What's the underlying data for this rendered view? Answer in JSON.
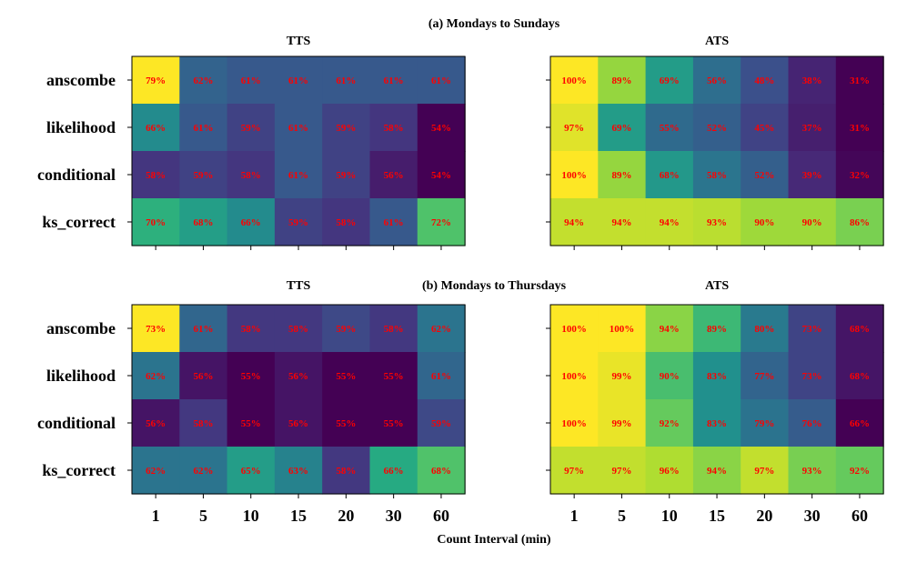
{
  "figure": {
    "xlabel": "Count Interval (min)",
    "value_suffix": "%"
  },
  "chart_data": [
    {
      "type": "heatmap",
      "panel_title": "(a) Mondays to Sundays",
      "title": "TTS",
      "rows": [
        "anscombe",
        "likelihood",
        "conditional",
        "ks_correct"
      ],
      "columns": [
        "1",
        "5",
        "10",
        "15",
        "20",
        "30",
        "60"
      ],
      "values": [
        [
          79,
          62,
          61,
          61,
          61,
          61,
          61
        ],
        [
          66,
          61,
          59,
          61,
          59,
          58,
          54
        ],
        [
          58,
          59,
          58,
          61,
          59,
          56,
          54
        ],
        [
          70,
          68,
          66,
          59,
          58,
          61,
          72
        ]
      ],
      "colormap": "viridis",
      "label_color": "#ff0000"
    },
    {
      "type": "heatmap",
      "panel_title": "(a) Mondays to Sundays",
      "title": "ATS",
      "rows": [
        "anscombe",
        "likelihood",
        "conditional",
        "ks_correct"
      ],
      "columns": [
        "1",
        "5",
        "10",
        "15",
        "20",
        "30",
        "60"
      ],
      "values": [
        [
          100,
          89,
          69,
          56,
          48,
          38,
          31
        ],
        [
          97,
          69,
          55,
          52,
          45,
          37,
          31
        ],
        [
          100,
          89,
          68,
          58,
          52,
          39,
          32
        ],
        [
          94,
          94,
          94,
          93,
          90,
          90,
          86
        ]
      ],
      "colormap": "viridis",
      "label_color": "#ff0000"
    },
    {
      "type": "heatmap",
      "panel_title": "(b) Mondays to Thursdays",
      "title": "TTS",
      "rows": [
        "anscombe",
        "likelihood",
        "conditional",
        "ks_correct"
      ],
      "columns": [
        "1",
        "5",
        "10",
        "15",
        "20",
        "30",
        "60"
      ],
      "values": [
        [
          73,
          61,
          58,
          58,
          59,
          58,
          62
        ],
        [
          62,
          56,
          55,
          56,
          55,
          55,
          61
        ],
        [
          56,
          58,
          55,
          56,
          55,
          55,
          59
        ],
        [
          62,
          62,
          65,
          63,
          58,
          66,
          68
        ]
      ],
      "colormap": "viridis",
      "label_color": "#ff0000"
    },
    {
      "type": "heatmap",
      "panel_title": "(b) Mondays to Thursdays",
      "title": "ATS",
      "rows": [
        "anscombe",
        "likelihood",
        "conditional",
        "ks_correct"
      ],
      "columns": [
        "1",
        "5",
        "10",
        "15",
        "20",
        "30",
        "60"
      ],
      "values": [
        [
          100,
          100,
          94,
          89,
          80,
          73,
          68
        ],
        [
          100,
          99,
          90,
          83,
          77,
          73,
          68
        ],
        [
          100,
          99,
          92,
          83,
          79,
          76,
          66
        ],
        [
          97,
          97,
          96,
          94,
          97,
          93,
          92
        ]
      ],
      "colormap": "viridis",
      "label_color": "#ff0000"
    }
  ]
}
